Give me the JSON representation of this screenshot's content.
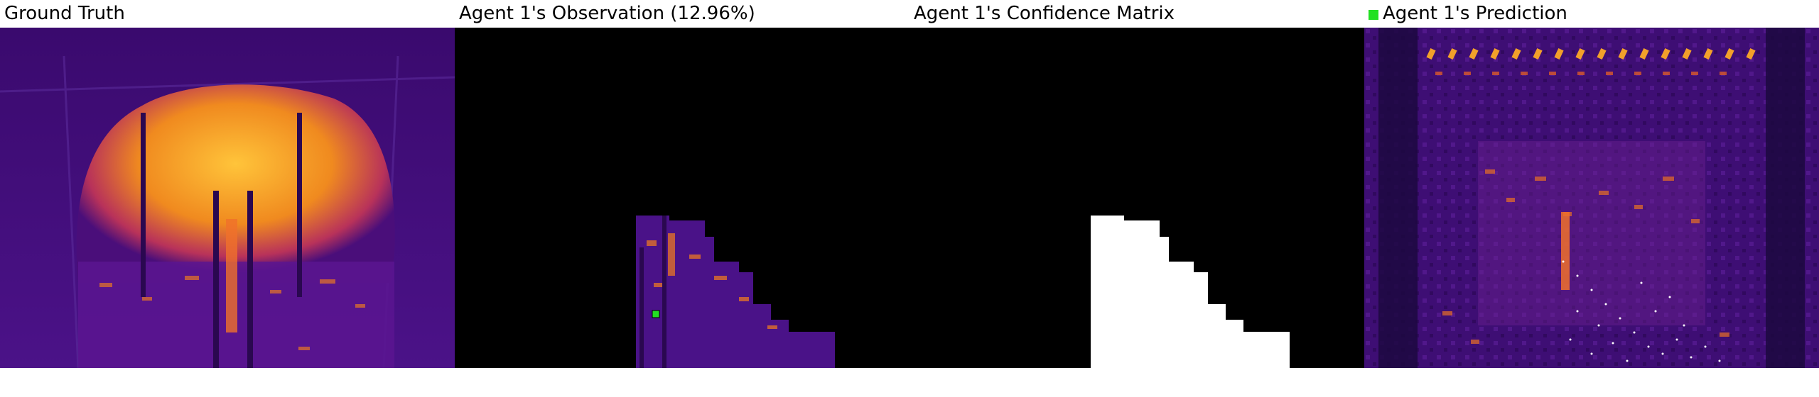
{
  "panels": [
    {
      "title": "Ground Truth"
    },
    {
      "title": "Agent 1's Observation (12.96%)"
    },
    {
      "title": "Agent 1's Confidence Matrix"
    },
    {
      "title": "Agent 1's Prediction"
    }
  ],
  "colors": {
    "thermal_background": "#3d0a73",
    "thermal_hot": "#f7a21a",
    "thermal_mid": "#d8532a",
    "mask_known": "#ffffff",
    "mask_unknown": "#000000",
    "agent_marker": "#22e022"
  },
  "legend": {
    "icon": "agent-marker-square"
  }
}
